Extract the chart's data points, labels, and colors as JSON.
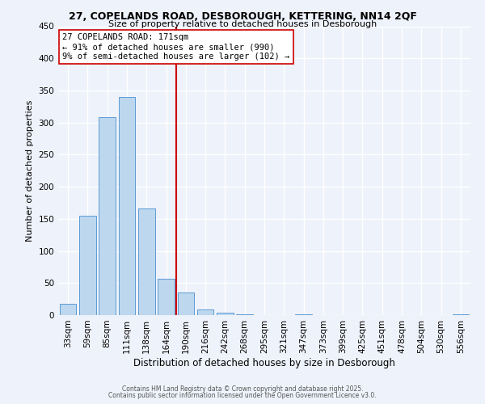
{
  "title1": "27, COPELANDS ROAD, DESBOROUGH, KETTERING, NN14 2QF",
  "title2": "Size of property relative to detached houses in Desborough",
  "xlabel": "Distribution of detached houses by size in Desborough",
  "ylabel": "Number of detached properties",
  "bar_labels": [
    "33sqm",
    "59sqm",
    "85sqm",
    "111sqm",
    "138sqm",
    "164sqm",
    "190sqm",
    "216sqm",
    "242sqm",
    "268sqm",
    "295sqm",
    "321sqm",
    "347sqm",
    "373sqm",
    "399sqm",
    "425sqm",
    "451sqm",
    "478sqm",
    "504sqm",
    "530sqm",
    "556sqm"
  ],
  "bar_values": [
    17,
    155,
    308,
    340,
    166,
    57,
    35,
    9,
    4,
    1,
    0,
    0,
    1,
    0,
    0,
    0,
    0,
    0,
    0,
    0,
    1
  ],
  "bar_color": "#bdd7ee",
  "bar_edge_color": "#5b9bd5",
  "vline_x": 5.5,
  "vline_color": "#cc0000",
  "annotation_title": "27 COPELANDS ROAD: 171sqm",
  "annotation_line1": "← 91% of detached houses are smaller (990)",
  "annotation_line2": "9% of semi-detached houses are larger (102) →",
  "annotation_box_color": "#ffffff",
  "annotation_box_edge": "#cc0000",
  "ylim": [
    0,
    450
  ],
  "yticks": [
    0,
    50,
    100,
    150,
    200,
    250,
    300,
    350,
    400,
    450
  ],
  "footer1": "Contains HM Land Registry data © Crown copyright and database right 2025.",
  "footer2": "Contains public sector information licensed under the Open Government Licence v3.0.",
  "bg_color": "#eef2fa"
}
